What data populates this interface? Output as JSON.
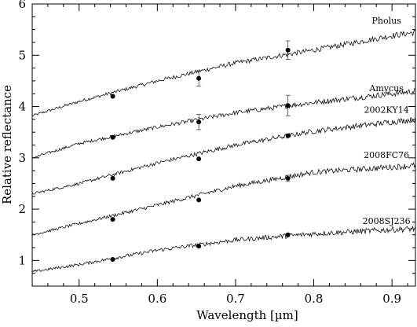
{
  "chart_data": {
    "type": "line",
    "title": "",
    "xlabel": "Wavelength [µm]",
    "ylabel": "Relative reflectance",
    "xlim": [
      0.44,
      0.93
    ],
    "ylim": [
      0.5,
      6.0
    ],
    "xticks": [
      0.5,
      0.6,
      0.7,
      0.8,
      0.9
    ],
    "xtick_labels": [
      "0.5",
      "0.6",
      "0.7",
      "0.8",
      "0.9"
    ],
    "yticks": [
      1,
      2,
      3,
      4,
      5,
      6
    ],
    "ytick_labels": [
      "1",
      "2",
      "3",
      "4",
      "5",
      "6"
    ],
    "grid": false,
    "legend": "none",
    "series": [
      {
        "name": "Pholus",
        "spectrum": {
          "x": [
            0.44,
            0.5,
            0.6,
            0.7,
            0.8,
            0.9,
            0.93
          ],
          "y": [
            3.82,
            4.1,
            4.5,
            4.85,
            5.1,
            5.38,
            5.45
          ]
        },
        "photometry": {
          "x": [
            0.543,
            0.653,
            0.767
          ],
          "y": [
            4.2,
            4.55,
            5.1
          ],
          "err": [
            0.0,
            0.15,
            0.18
          ]
        }
      },
      {
        "name": "Amycus",
        "spectrum": {
          "x": [
            0.44,
            0.5,
            0.6,
            0.7,
            0.8,
            0.9,
            0.93
          ],
          "y": [
            3.0,
            3.28,
            3.6,
            3.88,
            4.08,
            4.25,
            4.3
          ]
        },
        "photometry": {
          "x": [
            0.543,
            0.653,
            0.767
          ],
          "y": [
            3.4,
            3.7,
            4.02
          ],
          "err": [
            0.0,
            0.15,
            0.2
          ]
        }
      },
      {
        "name": "2002KY14",
        "spectrum": {
          "x": [
            0.44,
            0.5,
            0.6,
            0.7,
            0.8,
            0.9,
            0.93
          ],
          "y": [
            2.3,
            2.5,
            2.9,
            3.25,
            3.52,
            3.7,
            3.75
          ]
        },
        "photometry": {
          "x": [
            0.543,
            0.653,
            0.767
          ],
          "y": [
            2.6,
            2.98,
            3.43
          ],
          "err": [
            0.0,
            0.0,
            0.0
          ]
        }
      },
      {
        "name": "2008FC76",
        "spectrum": {
          "x": [
            0.44,
            0.5,
            0.6,
            0.7,
            0.8,
            0.9,
            0.93
          ],
          "y": [
            1.5,
            1.72,
            2.08,
            2.45,
            2.72,
            2.82,
            2.85
          ]
        },
        "photometry": {
          "x": [
            0.543,
            0.653,
            0.767
          ],
          "y": [
            1.8,
            2.18,
            2.6
          ],
          "err": [
            0.0,
            0.0,
            0.06
          ]
        }
      },
      {
        "name": "2008SJ236",
        "spectrum": {
          "x": [
            0.44,
            0.5,
            0.6,
            0.7,
            0.8,
            0.9,
            0.93
          ],
          "y": [
            0.78,
            0.92,
            1.2,
            1.4,
            1.52,
            1.6,
            1.62
          ]
        },
        "photometry": {
          "x": [
            0.543,
            0.653,
            0.767
          ],
          "y": [
            1.02,
            1.28,
            1.5
          ],
          "err": [
            0.0,
            0.0,
            0.0
          ]
        }
      }
    ]
  }
}
